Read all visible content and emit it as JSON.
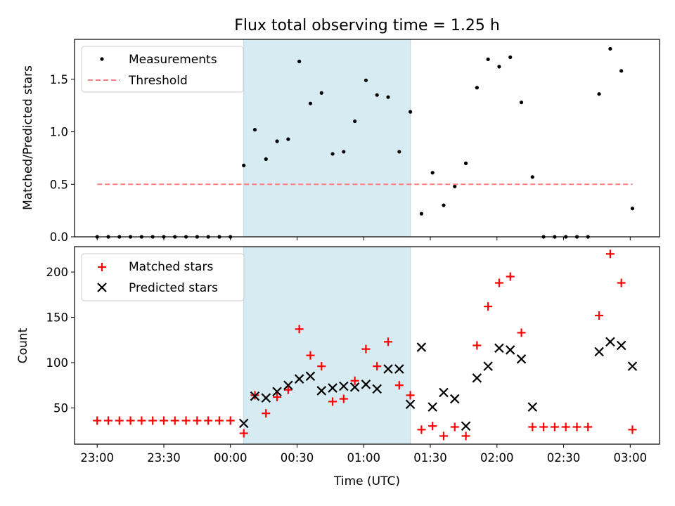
{
  "chart_data": [
    {
      "type": "scatter",
      "title": "Flux total observing time = 1.25 h",
      "xlabel": "",
      "ylabel": "Matched/Predicted stars",
      "xlim_hours": [
        22.83,
        27.22
      ],
      "ylim": [
        0,
        1.88
      ],
      "yticks": [
        0.0,
        0.5,
        1.0,
        1.5
      ],
      "ytick_labels": [
        "0.0",
        "0.5",
        "1.0",
        "1.5"
      ],
      "grid": false,
      "legend_position": "upper left",
      "shaded_interval": {
        "start": "00:06",
        "end": "01:21"
      },
      "series": [
        {
          "name": "Measurements",
          "marker": "dot",
          "color": "#000000",
          "x": [
            "23:00",
            "23:05",
            "23:10",
            "23:15",
            "23:20",
            "23:25",
            "23:30",
            "23:35",
            "23:40",
            "23:45",
            "23:50",
            "23:55",
            "00:00",
            "00:06",
            "00:11",
            "00:16",
            "00:21",
            "00:26",
            "00:31",
            "00:36",
            "00:41",
            "00:46",
            "00:51",
            "00:56",
            "01:01",
            "01:06",
            "01:11",
            "01:16",
            "01:21",
            "01:26",
            "01:31",
            "01:36",
            "01:41",
            "01:46",
            "01:51",
            "01:56",
            "02:01",
            "02:06",
            "02:11",
            "02:16",
            "02:21",
            "02:26",
            "02:31",
            "02:36",
            "02:41",
            "02:46",
            "02:51",
            "02:56",
            "03:01"
          ],
          "y": [
            0,
            0,
            0,
            0,
            0,
            0,
            0,
            0,
            0,
            0,
            0,
            0,
            0,
            0.68,
            1.02,
            0.74,
            0.91,
            0.93,
            1.67,
            1.27,
            1.37,
            0.79,
            0.81,
            1.1,
            1.49,
            1.35,
            1.33,
            0.81,
            1.19,
            0.22,
            0.61,
            0.3,
            0.48,
            0.7,
            1.42,
            1.69,
            1.62,
            1.71,
            1.28,
            0.57,
            0,
            0,
            0,
            0,
            0,
            1.36,
            1.79,
            1.58,
            0.27
          ]
        },
        {
          "name": "Threshold",
          "style": "dashed",
          "color": "#ff7f7f",
          "x": [
            "23:00",
            "03:01"
          ],
          "y": [
            0.5,
            0.5
          ]
        }
      ]
    },
    {
      "type": "scatter",
      "title": "",
      "xlabel": "Time (UTC)",
      "ylabel": "Count",
      "xlim_hours": [
        22.83,
        27.22
      ],
      "ylim": [
        10,
        228
      ],
      "yticks": [
        50,
        100,
        150,
        200
      ],
      "ytick_labels": [
        "50",
        "100",
        "150",
        "200"
      ],
      "xticks": [
        "23:00",
        "23:30",
        "00:00",
        "00:30",
        "01:00",
        "01:30",
        "02:00",
        "02:30",
        "03:00"
      ],
      "grid": false,
      "legend_position": "upper left",
      "shaded_interval": {
        "start": "00:06",
        "end": "01:21"
      },
      "series": [
        {
          "name": "Matched stars",
          "marker": "plus",
          "color": "#ff0000",
          "x": [
            "23:00",
            "23:05",
            "23:10",
            "23:15",
            "23:20",
            "23:25",
            "23:30",
            "23:35",
            "23:40",
            "23:45",
            "23:50",
            "23:55",
            "00:00",
            "00:06",
            "00:11",
            "00:16",
            "00:21",
            "00:26",
            "00:31",
            "00:36",
            "00:41",
            "00:46",
            "00:51",
            "00:56",
            "01:01",
            "01:06",
            "01:11",
            "01:16",
            "01:21",
            "01:26",
            "01:31",
            "01:36",
            "01:41",
            "01:46",
            "01:51",
            "01:56",
            "02:01",
            "02:06",
            "02:11",
            "02:16",
            "02:21",
            "02:26",
            "02:31",
            "02:36",
            "02:41",
            "02:46",
            "02:51",
            "02:56",
            "03:01"
          ],
          "y": [
            36,
            36,
            36,
            36,
            36,
            36,
            36,
            36,
            36,
            36,
            36,
            36,
            36,
            22,
            64,
            44,
            62,
            70,
            137,
            108,
            96,
            57,
            60,
            80,
            115,
            96,
            123,
            75,
            64,
            26,
            30,
            19,
            29,
            19,
            119,
            162,
            188,
            195,
            133,
            29,
            29,
            29,
            29,
            29,
            29,
            152,
            220,
            188,
            26
          ]
        },
        {
          "name": "Predicted stars",
          "marker": "x",
          "color": "#000000",
          "x": [
            "00:06",
            "00:11",
            "00:16",
            "00:21",
            "00:26",
            "00:31",
            "00:36",
            "00:41",
            "00:46",
            "00:51",
            "00:56",
            "01:01",
            "01:06",
            "01:11",
            "01:16",
            "01:21",
            "01:26",
            "01:31",
            "01:36",
            "01:41",
            "01:46",
            "01:51",
            "01:56",
            "02:01",
            "02:06",
            "02:11",
            "02:16",
            "02:46",
            "02:51",
            "02:56",
            "03:01"
          ],
          "y": [
            33,
            63,
            61,
            68,
            75,
            82,
            85,
            69,
            72,
            74,
            73,
            76,
            71,
            93,
            93,
            54,
            117,
            51,
            67,
            60,
            30,
            83,
            96,
            116,
            114,
            104,
            51,
            112,
            123,
            119,
            96
          ]
        }
      ]
    }
  ]
}
